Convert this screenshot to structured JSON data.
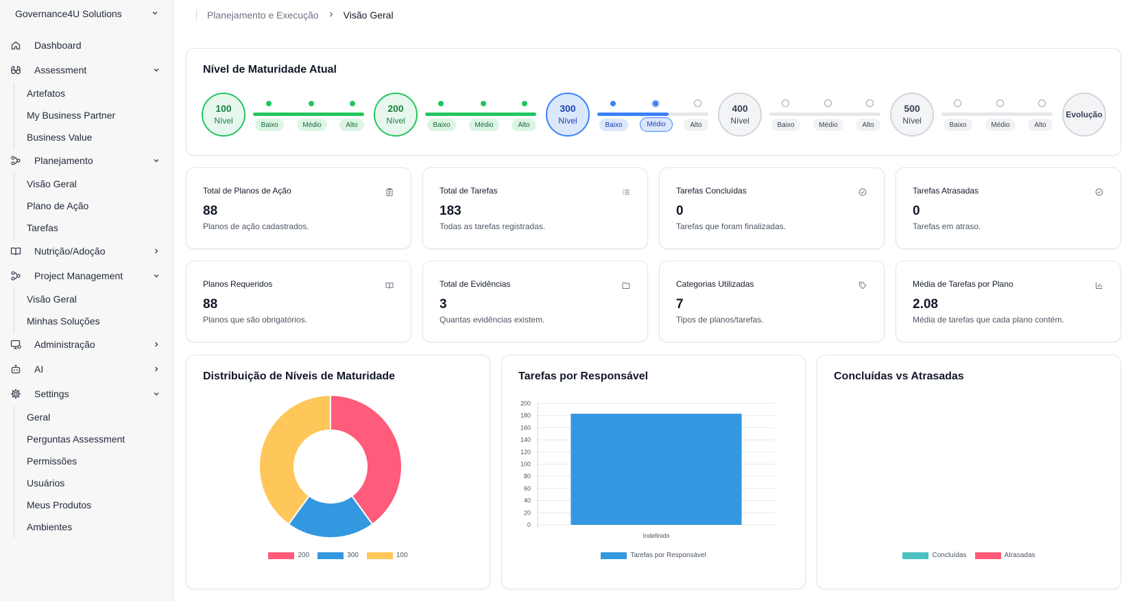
{
  "sidebar": {
    "org_name": "Governance4U Solutions",
    "items": [
      {
        "label": "Dashboard"
      },
      {
        "label": "Assessment",
        "children": [
          "Artefatos",
          "My Business Partner",
          "Business Value"
        ]
      },
      {
        "label": "Planejamento",
        "children": [
          "Visão Geral",
          "Plano de Ação",
          "Tarefas"
        ]
      },
      {
        "label": "Nutrição/Adoção"
      },
      {
        "label": "Project Management",
        "children": [
          "Visão Geral",
          "Minhas Soluções"
        ]
      },
      {
        "label": "Administração"
      },
      {
        "label": "AI"
      },
      {
        "label": "Settings",
        "children": [
          "Geral",
          "Perguntas Assessment",
          "Permissões",
          "Usuários",
          "Meus Produtos",
          "Ambientes"
        ]
      }
    ]
  },
  "breadcrumb": {
    "parent": "Planejamento e Execução",
    "current": "Visão Geral"
  },
  "maturity": {
    "title": "Nível de Maturidade Atual",
    "levels": [
      {
        "num": "100",
        "label": "Nível"
      },
      {
        "num": "200",
        "label": "Nível"
      },
      {
        "num": "300",
        "label": "Nível"
      },
      {
        "num": "400",
        "label": "Nível"
      },
      {
        "num": "500",
        "label": "Nível"
      }
    ],
    "steps": [
      "Baixo",
      "Médio",
      "Alto"
    ],
    "evolution_label": "Evolução",
    "current_level": "300",
    "current_step": "Médio",
    "colors": {
      "done": "#22c55e",
      "current": "#3b82f6",
      "pending": "#d1d5db"
    }
  },
  "stats": [
    {
      "title": "Total de Planos de Ação",
      "value": "88",
      "desc": "Planos de ação cadastrados.",
      "icon": "clipboard-icon"
    },
    {
      "title": "Total de Tarefas",
      "value": "183",
      "desc": "Todas as tarefas registradas.",
      "icon": "list-icon"
    },
    {
      "title": "Tarefas Concluídas",
      "value": "0",
      "desc": "Tarefas que foram finalizadas.",
      "icon": "check-circle-icon"
    },
    {
      "title": "Tarefas Atrasadas",
      "value": "0",
      "desc": "Tarefas em atraso.",
      "icon": "check-circle-icon"
    },
    {
      "title": "Planos Requeridos",
      "value": "88",
      "desc": "Planos que são obrigatórios.",
      "icon": "book-icon"
    },
    {
      "title": "Total de Evidências",
      "value": "3",
      "desc": "Quantas evidências existem.",
      "icon": "folder-icon"
    },
    {
      "title": "Categorias Utilizadas",
      "value": "7",
      "desc": "Tipos de planos/tarefas.",
      "icon": "tag-icon"
    },
    {
      "title": "Média de Tarefas por Plano",
      "value": "2.08",
      "desc": "Média de tarefas que cada plano contém.",
      "icon": "bar-chart-icon"
    }
  ],
  "charts": {
    "donut_title": "Distribuição de Níveis de Maturidade",
    "bar_title": "Tarefas por Responsável",
    "line_title": "Concluídas vs Atrasadas"
  },
  "chart_data": [
    {
      "type": "pie",
      "title": "Distribuição de Níveis de Maturidade",
      "categories": [
        "200",
        "300",
        "100"
      ],
      "values": [
        40,
        20,
        40
      ],
      "colors": [
        "#ff5b7a",
        "#3398e0",
        "#ffc65a"
      ],
      "legend": "bottom"
    },
    {
      "type": "bar",
      "title": "Tarefas por Responsável",
      "categories": [
        "Indefinido"
      ],
      "series": [
        {
          "name": "Tarefas por Responsável",
          "values": [
            183
          ],
          "color": "#3398e0"
        }
      ],
      "ylim": [
        0,
        200
      ],
      "yticks": [
        0,
        20,
        40,
        60,
        80,
        100,
        120,
        140,
        160,
        180,
        200
      ],
      "grid": true,
      "legend": "bottom"
    },
    {
      "type": "line",
      "title": "Concluídas vs Atrasadas",
      "categories": [],
      "series": [
        {
          "name": "Concluídas",
          "values": [],
          "color": "#4bc0c0"
        },
        {
          "name": "Atrasadas",
          "values": [],
          "color": "#ff5b7a"
        }
      ],
      "legend": "bottom"
    }
  ]
}
